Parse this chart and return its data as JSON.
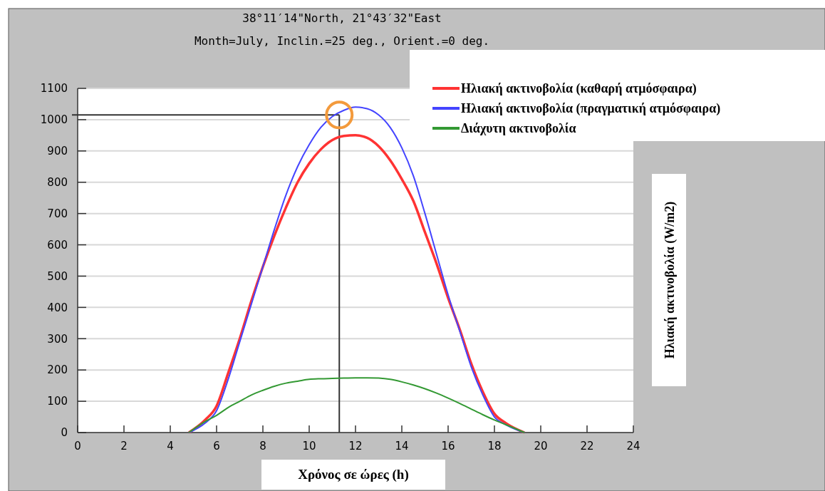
{
  "chart_data": {
    "type": "line",
    "title": "38°11′14\"North, 21°43′32\"East",
    "subtitle": "Month=July, Inclin.=25 deg., Orient.=0 deg.",
    "xlabel": "Χρόνος σε ώρες (h)",
    "ylabel": "Ηλιακή ακτινοβολία (W/m2)",
    "xlim": [
      0,
      24
    ],
    "xticks": [
      0,
      2,
      4,
      6,
      8,
      10,
      12,
      14,
      16,
      18,
      20,
      22,
      24
    ],
    "ylim": [
      0,
      1100
    ],
    "yticks": [
      0,
      100,
      200,
      300,
      400,
      500,
      600,
      700,
      800,
      900,
      1000,
      1100
    ],
    "grid": "y",
    "legend": "top right",
    "line_style": "solid",
    "marker": "none",
    "x": [
      4.8,
      5.5,
      6,
      6.5,
      7,
      7.5,
      8,
      8.5,
      9,
      9.5,
      10,
      10.5,
      11,
      11.5,
      12,
      12.5,
      13,
      13.5,
      14,
      14.5,
      15,
      15.5,
      16,
      16.5,
      17,
      17.5,
      18,
      18.5,
      19.3
    ],
    "series": [
      {
        "name": "Ηλιακή ακτινοβολία (καθαρή ατμόσφαιρα)",
        "color": "#ff3333",
        "values": [
          0,
          40,
          85,
          190,
          300,
          420,
          530,
          630,
          720,
          800,
          860,
          905,
          935,
          948,
          950,
          942,
          915,
          870,
          810,
          740,
          640,
          540,
          430,
          330,
          220,
          130,
          60,
          30,
          0
        ]
      },
      {
        "name": "Ηλιακή ακτινοβολία (πραγματική ατμόσφαιρα)",
        "color": "#4444ff",
        "values": [
          0,
          30,
          70,
          170,
          290,
          410,
          530,
          650,
          760,
          850,
          920,
          975,
          1010,
          1030,
          1040,
          1035,
          1015,
          975,
          910,
          820,
          700,
          570,
          440,
          325,
          210,
          120,
          50,
          25,
          0
        ]
      },
      {
        "name": "Διάχυτη ακτινοβολία",
        "color": "#339933",
        "values": [
          0,
          35,
          55,
          80,
          100,
          120,
          135,
          148,
          158,
          164,
          170,
          172,
          173,
          174,
          175,
          175,
          174,
          170,
          162,
          152,
          140,
          126,
          110,
          93,
          75,
          57,
          40,
          25,
          0
        ]
      }
    ],
    "ref_lines": [
      {
        "axis": "x",
        "value": 11.3,
        "color": "#333333"
      },
      {
        "axis": "y",
        "value": 1015,
        "color": "#333333"
      }
    ]
  }
}
